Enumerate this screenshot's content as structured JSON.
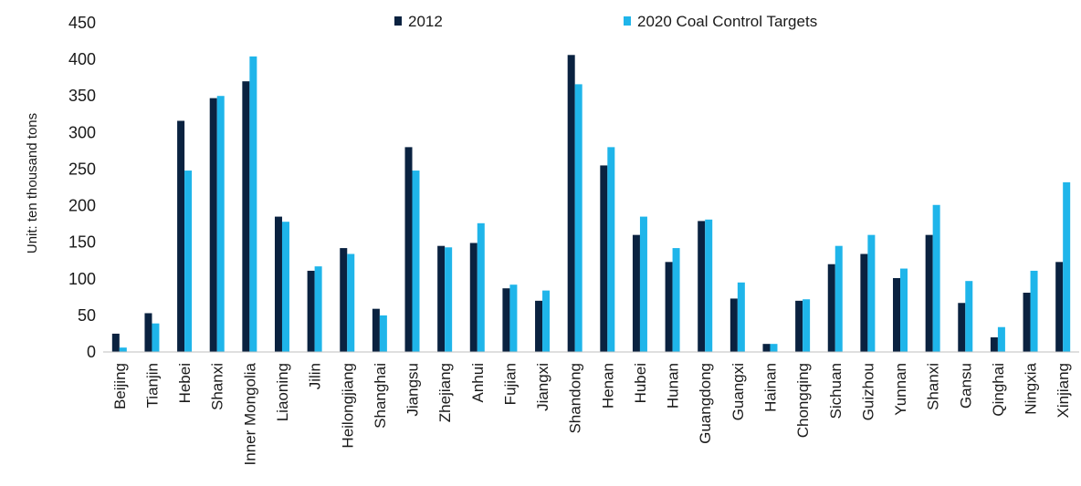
{
  "chart_data": {
    "type": "bar",
    "title": "",
    "xlabel": "",
    "ylabel": "Unit: ten thousand tons",
    "ylim": [
      0,
      450
    ],
    "yticks": [
      0,
      50,
      100,
      150,
      200,
      250,
      300,
      350,
      400,
      450
    ],
    "grid": false,
    "legend_position": "top",
    "categories": [
      "Beijing",
      "Tianjin",
      "Hebei",
      "Shanxi",
      "Inner Mongolia",
      "Liaoning",
      "Jilin",
      "Heilongjiang",
      "Shanghai",
      "Jiangsu",
      "Zhejiang",
      "Anhui",
      "Fujian",
      "Jiangxi",
      "Shandong",
      "Henan",
      "Hubei",
      "Hunan",
      "Guangdong",
      "Guangxi",
      "Hainan",
      "Chongqing",
      "Sichuan",
      "Guizhou",
      "Yunnan",
      "Shanxi",
      "Gansu",
      "Qinghai",
      "Ningxia",
      "Xinjiang"
    ],
    "series": [
      {
        "name": "2012",
        "color": "#0a2240",
        "values": [
          25,
          53,
          316,
          347,
          370,
          185,
          111,
          142,
          59,
          280,
          145,
          149,
          87,
          70,
          406,
          255,
          160,
          123,
          179,
          73,
          11,
          70,
          120,
          134,
          101,
          160,
          67,
          20,
          81,
          123
        ]
      },
      {
        "name": "2020 Coal Control Targets",
        "color": "#1fb5ea",
        "values": [
          6,
          39,
          248,
          350,
          404,
          178,
          117,
          134,
          50,
          248,
          143,
          176,
          92,
          84,
          366,
          280,
          185,
          142,
          181,
          95,
          11,
          72,
          145,
          160,
          114,
          201,
          97,
          34,
          111,
          232
        ]
      }
    ]
  }
}
